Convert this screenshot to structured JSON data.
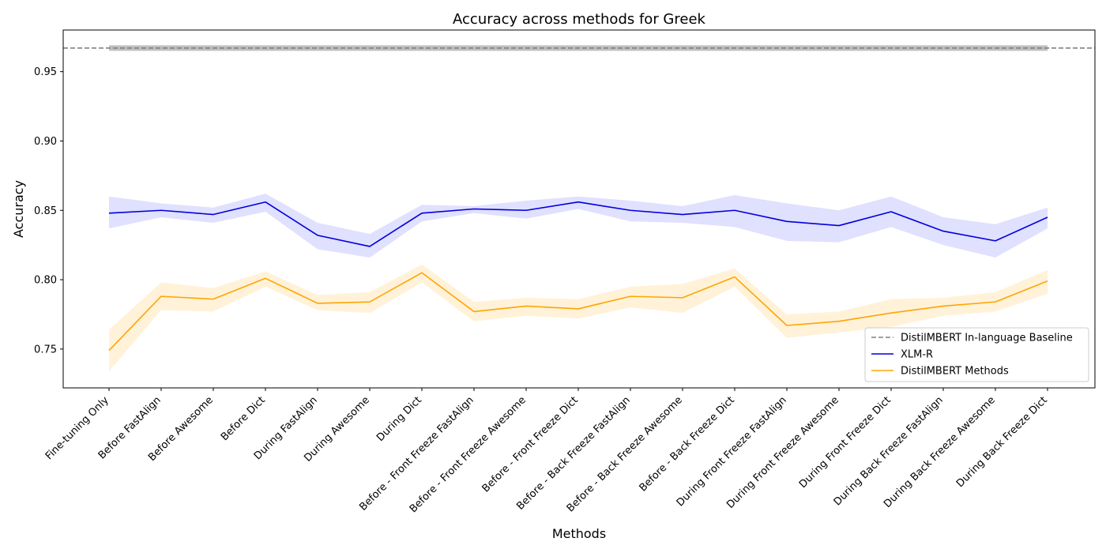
{
  "chart_data": {
    "type": "line",
    "title": "Accuracy across methods for Greek",
    "xlabel": "Methods",
    "ylabel": "Accuracy",
    "categories": [
      "Fine-tuning Only",
      "Before FastAlign",
      "Before Awesome",
      "Before Dict",
      "During FastAlign",
      "During Awesome",
      "During Dict",
      "Before - Front Freeze FastAlign",
      "Before - Front Freeze Awesome",
      "Before - Front Freeze Dict",
      "Before - Back Freeze FastAlign",
      "Before - Back Freeze Awesome",
      "Before - Back Freeze Dict",
      "During Front Freeze FastAlign",
      "During Front Freeze Awesome",
      "During Front Freeze Dict",
      "During Back Freeze FastAlign",
      "During Back Freeze Awesome",
      "During Back Freeze Dict"
    ],
    "ylim": [
      0.722,
      0.98
    ],
    "yticks": [
      0.75,
      0.8,
      0.85,
      0.9,
      0.95
    ],
    "ytick_labels": [
      "0.75",
      "0.80",
      "0.85",
      "0.90",
      "0.95"
    ],
    "grid": false,
    "legend_position": "lower-right",
    "baseline": {
      "name": "DistilMBERT In-language Baseline",
      "value": 0.967,
      "lower": 0.965,
      "upper": 0.969,
      "color": "#808080",
      "band_color": "#c0c0c0"
    },
    "series": [
      {
        "name": "XLM-R",
        "color": "#0000dd",
        "band_color": "#e0e0ff",
        "values": [
          0.848,
          0.85,
          0.847,
          0.856,
          0.832,
          0.824,
          0.848,
          0.851,
          0.85,
          0.856,
          0.85,
          0.847,
          0.85,
          0.842,
          0.839,
          0.849,
          0.835,
          0.828,
          0.845
        ],
        "lower": [
          0.837,
          0.845,
          0.841,
          0.849,
          0.822,
          0.816,
          0.842,
          0.848,
          0.844,
          0.851,
          0.842,
          0.841,
          0.838,
          0.828,
          0.827,
          0.838,
          0.825,
          0.816,
          0.837
        ],
        "upper": [
          0.86,
          0.855,
          0.852,
          0.862,
          0.841,
          0.833,
          0.854,
          0.853,
          0.857,
          0.86,
          0.857,
          0.853,
          0.861,
          0.855,
          0.85,
          0.86,
          0.845,
          0.84,
          0.852
        ]
      },
      {
        "name": "DistilMBERT Methods",
        "color": "#ffa500",
        "band_color": "#fff2d9",
        "values": [
          0.749,
          0.788,
          0.786,
          0.801,
          0.783,
          0.784,
          0.805,
          0.777,
          0.781,
          0.779,
          0.788,
          0.787,
          0.802,
          0.767,
          0.77,
          0.776,
          0.781,
          0.784,
          0.799
        ],
        "lower": [
          0.734,
          0.778,
          0.777,
          0.795,
          0.778,
          0.776,
          0.798,
          0.77,
          0.774,
          0.772,
          0.78,
          0.776,
          0.795,
          0.758,
          0.762,
          0.766,
          0.774,
          0.777,
          0.79
        ],
        "upper": [
          0.764,
          0.798,
          0.794,
          0.806,
          0.789,
          0.791,
          0.811,
          0.784,
          0.787,
          0.786,
          0.795,
          0.797,
          0.808,
          0.775,
          0.777,
          0.786,
          0.787,
          0.791,
          0.807
        ]
      }
    ]
  }
}
